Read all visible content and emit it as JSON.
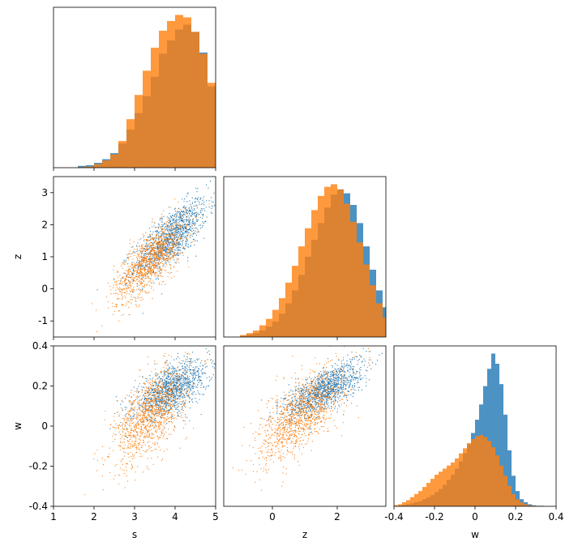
{
  "chart_data": [
    {
      "type": "histogram",
      "panel": "s-s",
      "variable": "s",
      "xlim": [
        1,
        5
      ],
      "show_x_ticklabels": false,
      "bin_width": 0.2,
      "series": [
        {
          "color": "#1f77b4",
          "bin_edges_start": 1.6,
          "counts": [
            3,
            4,
            8,
            14,
            24,
            40,
            63,
            90,
            118,
            150,
            188,
            210,
            228,
            236,
            224,
            190,
            134,
            80,
            50,
            24
          ]
        },
        {
          "color": "#ff7f0e",
          "bin_edges_start": 1.6,
          "counts": [
            1,
            2,
            6,
            12,
            22,
            44,
            80,
            120,
            160,
            198,
            226,
            242,
            252,
            248,
            224,
            188,
            140,
            90,
            52,
            22
          ]
        }
      ]
    },
    {
      "type": "scatter",
      "panel": "s-z",
      "xlim": [
        1,
        5
      ],
      "ylim": [
        -1.5,
        3.5
      ],
      "ylabel": "z",
      "yticks": [
        -1,
        0,
        1,
        2,
        3
      ],
      "show_x_ticklabels": false,
      "series": [
        {
          "color": "#1f77b4",
          "n_points": 1200,
          "mean": [
            3.9,
            1.6
          ],
          "std": [
            0.45,
            0.6
          ],
          "corr": 0.75
        },
        {
          "color": "#ff7f0e",
          "n_points": 1200,
          "mean": [
            3.4,
            0.9
          ],
          "std": [
            0.45,
            0.65
          ],
          "corr": 0.75
        }
      ]
    },
    {
      "type": "histogram",
      "panel": "z-z",
      "variable": "z",
      "xlim": [
        -1.5,
        3.5
      ],
      "show_x_ticklabels": false,
      "bin_width": 0.2,
      "series": [
        {
          "color": "#1f77b4",
          "bin_edges_start": -1.0,
          "counts": [
            2,
            4,
            6,
            10,
            16,
            24,
            36,
            52,
            72,
            96,
            124,
            150,
            176,
            200,
            220,
            228,
            222,
            204,
            176,
            140,
            104,
            72,
            46,
            28,
            16,
            8,
            4
          ]
        },
        {
          "color": "#ff7f0e",
          "bin_edges_start": -1.0,
          "counts": [
            3,
            6,
            10,
            18,
            28,
            42,
            60,
            84,
            110,
            140,
            168,
            196,
            218,
            232,
            236,
            228,
            206,
            178,
            146,
            112,
            80,
            52,
            30,
            16,
            8,
            4,
            2
          ]
        }
      ]
    },
    {
      "type": "scatter",
      "panel": "s-w",
      "xlim": [
        1,
        5
      ],
      "ylim": [
        -0.4,
        0.4
      ],
      "xlabel": "s",
      "ylabel": "w",
      "xticks": [
        1,
        2,
        3,
        4,
        5
      ],
      "yticks": [
        -0.4,
        -0.2,
        0.0,
        0.2,
        0.4
      ],
      "series": [
        {
          "color": "#1f77b4",
          "n_points": 1200,
          "mean": [
            3.9,
            0.18
          ],
          "std": [
            0.45,
            0.07
          ],
          "corr": 0.6
        },
        {
          "color": "#ff7f0e",
          "n_points": 1200,
          "mean": [
            3.4,
            0.06
          ],
          "std": [
            0.45,
            0.12
          ],
          "corr": 0.6
        }
      ]
    },
    {
      "type": "scatter",
      "panel": "z-w",
      "xlim": [
        -1.5,
        3.5
      ],
      "ylim": [
        -0.4,
        0.4
      ],
      "xlabel": "z",
      "xticks": [
        0,
        2
      ],
      "show_y_ticklabels": false,
      "series": [
        {
          "color": "#1f77b4",
          "n_points": 1200,
          "mean": [
            1.6,
            0.18
          ],
          "std": [
            0.6,
            0.07
          ],
          "corr": 0.7
        },
        {
          "color": "#ff7f0e",
          "n_points": 1200,
          "mean": [
            0.9,
            0.06
          ],
          "std": [
            0.65,
            0.12
          ],
          "corr": 0.7
        }
      ]
    },
    {
      "type": "histogram",
      "panel": "w-w",
      "variable": "w",
      "xlim": [
        -0.4,
        0.4
      ],
      "xlabel": "w",
      "xticks": [
        -0.4,
        -0.2,
        0.0,
        0.2,
        0.4
      ],
      "bin_width": 0.02,
      "series": [
        {
          "color": "#1f77b4",
          "bin_edges_start": -0.4,
          "counts": [
            1,
            2,
            3,
            4,
            6,
            8,
            10,
            14,
            18,
            22,
            28,
            34,
            42,
            52,
            62,
            74,
            88,
            104,
            122,
            144,
            170,
            200,
            236,
            270,
            300,
            280,
            240,
            180,
            110,
            60,
            30,
            14,
            8,
            4,
            2,
            1,
            1,
            0,
            0,
            0
          ]
        },
        {
          "color": "#ff7f0e",
          "bin_edges_start": -0.4,
          "counts": [
            2,
            4,
            8,
            12,
            18,
            24,
            30,
            38,
            46,
            54,
            62,
            68,
            74,
            80,
            86,
            94,
            104,
            114,
            124,
            132,
            138,
            140,
            136,
            128,
            116,
            100,
            80,
            60,
            40,
            24,
            14,
            8,
            4,
            2,
            1,
            1,
            0,
            0,
            0,
            0
          ]
        }
      ]
    }
  ]
}
